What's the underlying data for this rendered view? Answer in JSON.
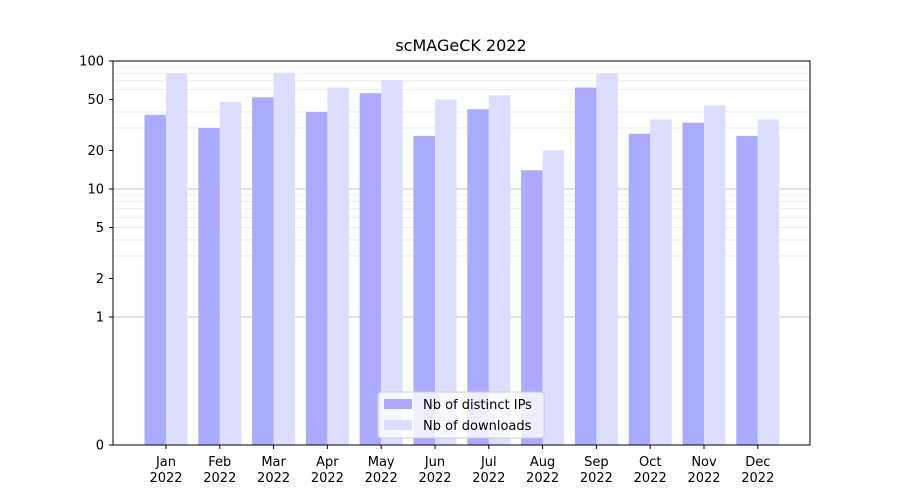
{
  "chart_data": {
    "type": "bar",
    "title": "scMAGeCK 2022",
    "xlabel": "",
    "ylabel": "",
    "yscale": "symlog",
    "ylim": [
      0,
      100
    ],
    "y_ticks": [
      0,
      1,
      2,
      5,
      10,
      20,
      50,
      100
    ],
    "y_tick_labels": [
      "0",
      "1",
      "2",
      "5",
      "10",
      "20",
      "50",
      "100"
    ],
    "categories": [
      "Jan\n2022",
      "Feb\n2022",
      "Mar\n2022",
      "Apr\n2022",
      "May\n2022",
      "Jun\n2022",
      "Jul\n2022",
      "Aug\n2022",
      "Sep\n2022",
      "Oct\n2022",
      "Nov\n2022",
      "Dec\n2022"
    ],
    "category_lines": [
      [
        "Jan",
        "2022"
      ],
      [
        "Feb",
        "2022"
      ],
      [
        "Mar",
        "2022"
      ],
      [
        "Apr",
        "2022"
      ],
      [
        "May",
        "2022"
      ],
      [
        "Jun",
        "2022"
      ],
      [
        "Jul",
        "2022"
      ],
      [
        "Aug",
        "2022"
      ],
      [
        "Sep",
        "2022"
      ],
      [
        "Oct",
        "2022"
      ],
      [
        "Nov",
        "2022"
      ],
      [
        "Dec",
        "2022"
      ]
    ],
    "series": [
      {
        "name": "Nb of distinct IPs",
        "color": "#aaaaff",
        "values": [
          38,
          30,
          52,
          40,
          56,
          26,
          42,
          14,
          62,
          27,
          33,
          26
        ]
      },
      {
        "name": "Nb of downloads",
        "color": "#ddddff",
        "values": [
          80,
          48,
          81,
          62,
          71,
          50,
          54,
          20,
          80,
          35,
          45,
          35
        ]
      }
    ],
    "legend_position": "lower center",
    "grid": "horizontal",
    "grid_color": "#b0b0b0"
  }
}
